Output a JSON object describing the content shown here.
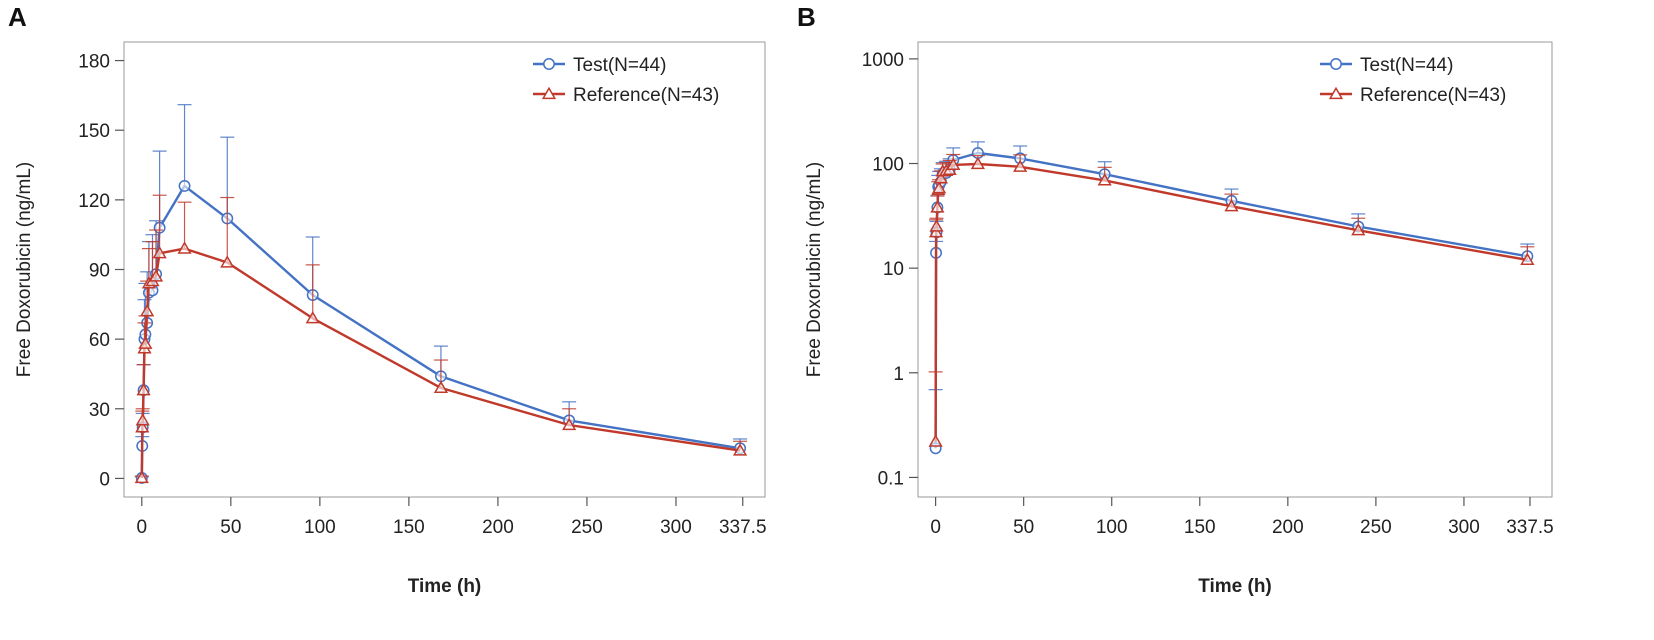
{
  "panels": {
    "a": {
      "letter": "A"
    },
    "b": {
      "letter": "B"
    }
  },
  "colors": {
    "test": "#4472c4",
    "reference": "#c0392b",
    "frame": "#999999"
  },
  "chart_data": [
    {
      "type": "line",
      "scale": "linear",
      "title": "",
      "xlabel": "Time (h)",
      "ylabel": "Free Doxorubicin (ng/mL)",
      "xlim": [
        -10,
        350
      ],
      "ylim": [
        -8,
        188
      ],
      "xticks": [
        0,
        50,
        100,
        150,
        200,
        250,
        300,
        337.5
      ],
      "xtick_labels": [
        "0",
        "50",
        "100",
        "150",
        "200",
        "250",
        "300",
        "337.5"
      ],
      "yticks": [
        0,
        30,
        60,
        90,
        120,
        150,
        180
      ],
      "ytick_labels": [
        "0",
        "30",
        "60",
        "90",
        "120",
        "150",
        "180"
      ],
      "legend_position": "top-right",
      "series": [
        {
          "name": "Test(N=44)",
          "marker": "circle",
          "x": [
            0,
            0.25,
            0.5,
            1,
            1.5,
            2,
            3,
            4,
            6,
            8,
            10,
            24,
            48,
            96,
            168,
            240,
            336
          ],
          "y": [
            0.2,
            14,
            22,
            38,
            60,
            62,
            67,
            80,
            81,
            88,
            108,
            126,
            112,
            79,
            44,
            25,
            13
          ],
          "err": [
            0.5,
            4,
            6,
            11,
            17,
            22,
            22,
            22,
            24,
            23,
            33,
            35,
            35,
            25,
            13,
            8,
            4
          ]
        },
        {
          "name": "Reference(N=43)",
          "marker": "triangle",
          "x": [
            0,
            0.25,
            0.5,
            1,
            1.5,
            2,
            3,
            4,
            6,
            8,
            10,
            24,
            48,
            96,
            168,
            240,
            336
          ],
          "y": [
            0.2,
            22,
            25,
            38,
            56,
            58,
            72,
            84,
            85,
            87,
            97,
            99,
            93,
            69,
            39,
            23,
            12
          ],
          "err": [
            0.8,
            7,
            5,
            11,
            11,
            12,
            13,
            15,
            17,
            20,
            25,
            20,
            28,
            23,
            12,
            7,
            4
          ]
        }
      ]
    },
    {
      "type": "line",
      "scale": "log",
      "title": "",
      "xlabel": "Time (h)",
      "ylabel": "Free Doxorubicin (ng/mL)",
      "xlim": [
        -10,
        350
      ],
      "ylim": [
        0.065,
        1450
      ],
      "xticks": [
        0,
        50,
        100,
        150,
        200,
        250,
        300,
        337.5
      ],
      "xtick_labels": [
        "0",
        "50",
        "100",
        "150",
        "200",
        "250",
        "300",
        "337.5"
      ],
      "yticks": [
        0.1,
        1,
        10,
        100,
        1000
      ],
      "ytick_labels": [
        "0.1",
        "1",
        "10",
        "100",
        "1000"
      ],
      "legend_position": "top-right",
      "series": [
        {
          "name": "Test(N=44)",
          "marker": "circle",
          "x": [
            0,
            0.25,
            0.5,
            1,
            1.5,
            2,
            3,
            4,
            6,
            8,
            10,
            24,
            48,
            96,
            168,
            240,
            336
          ],
          "y": [
            0.19,
            14,
            22,
            38,
            60,
            62,
            67,
            80,
            81,
            88,
            108,
            126,
            112,
            79,
            44,
            25,
            13
          ],
          "err": [
            0.5,
            4,
            6,
            11,
            17,
            22,
            22,
            22,
            24,
            23,
            33,
            35,
            35,
            25,
            13,
            8,
            4
          ]
        },
        {
          "name": "Reference(N=43)",
          "marker": "triangle",
          "x": [
            0,
            0.25,
            0.5,
            1,
            1.5,
            2,
            3,
            4,
            6,
            8,
            10,
            24,
            48,
            96,
            168,
            240,
            336
          ],
          "y": [
            0.22,
            22,
            25,
            38,
            56,
            58,
            72,
            84,
            85,
            87,
            97,
            99,
            93,
            69,
            39,
            23,
            12
          ],
          "err": [
            0.8,
            7,
            5,
            11,
            11,
            12,
            13,
            15,
            17,
            20,
            25,
            20,
            28,
            23,
            12,
            7,
            4
          ]
        }
      ]
    }
  ]
}
